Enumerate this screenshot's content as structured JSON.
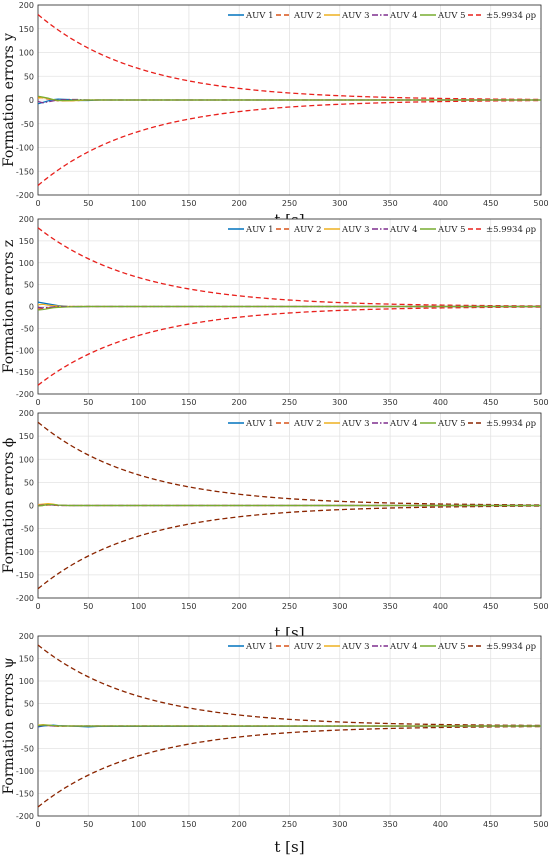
{
  "chart_data": [
    {
      "type": "line",
      "ylabel": "Formation errors y",
      "xlabel": "t [s]",
      "xlim": [
        0,
        500
      ],
      "ylim": [
        -200,
        200
      ],
      "xticks": [
        "0",
        "50",
        "100",
        "150",
        "200",
        "250",
        "300",
        "350",
        "400",
        "450",
        "500"
      ],
      "yticks": [
        "200",
        "150",
        "100",
        "50",
        "0",
        "-50",
        "-100",
        "-150",
        "-200"
      ],
      "grid": true,
      "legend": "top-right, horizontal",
      "series": [
        {
          "name": "AUV 1",
          "color": "#0072BD",
          "style": "solid",
          "x": [
            0,
            5,
            10,
            15,
            20,
            30,
            40,
            50,
            60,
            500
          ],
          "y": [
            -8,
            -5,
            -2,
            1,
            2,
            1,
            -1,
            -1,
            0,
            0
          ]
        },
        {
          "name": "AUV 2",
          "color": "#D95319",
          "style": "dashed",
          "x": [
            0,
            5,
            10,
            15,
            20,
            30,
            40,
            50,
            60,
            500
          ],
          "y": [
            6,
            4,
            2,
            0,
            -2,
            -2,
            -1,
            0,
            0,
            0
          ]
        },
        {
          "name": "AUV 3",
          "color": "#EDB120",
          "style": "solid",
          "x": [
            0,
            5,
            10,
            15,
            20,
            30,
            40,
            50,
            60,
            500
          ],
          "y": [
            4,
            5,
            3,
            1,
            -1,
            -2,
            -1,
            0,
            0,
            0
          ]
        },
        {
          "name": "AUV 4",
          "color": "#7E2F8E",
          "style": "dashdot",
          "x": [
            0,
            5,
            10,
            15,
            20,
            30,
            40,
            50,
            60,
            500
          ],
          "y": [
            -3,
            -6,
            -4,
            -2,
            0,
            1,
            1,
            0,
            0,
            0
          ]
        },
        {
          "name": "AUV 5",
          "color": "#77AC30",
          "style": "solid",
          "x": [
            0,
            5,
            10,
            15,
            20,
            30,
            40,
            50,
            60,
            500
          ],
          "y": [
            8,
            6,
            4,
            1,
            -1,
            -1,
            0,
            0,
            0,
            0
          ]
        }
      ],
      "bound": {
        "name": "±5.9934 ρp",
        "color": "#E8201C",
        "style": "dashed",
        "x0": 180,
        "decay": 0.01
      }
    },
    {
      "type": "line",
      "ylabel": "Formation errors z",
      "xlabel": "t [s]",
      "xlim": [
        0,
        500
      ],
      "ylim": [
        -200,
        200
      ],
      "xticks": [
        "0",
        "50",
        "100",
        "150",
        "200",
        "250",
        "300",
        "350",
        "400",
        "450",
        "500"
      ],
      "yticks": [
        "200",
        "150",
        "100",
        "50",
        "0",
        "-50",
        "-100",
        "-150",
        "-200"
      ],
      "grid": true,
      "legend": "top-right, horizontal",
      "series": [
        {
          "name": "AUV 1",
          "color": "#0072BD",
          "style": "solid",
          "x": [
            0,
            5,
            10,
            15,
            20,
            30,
            40,
            50,
            60,
            500
          ],
          "y": [
            10,
            8,
            6,
            4,
            2,
            0,
            -1,
            0,
            0,
            0
          ]
        },
        {
          "name": "AUV 2",
          "color": "#D95319",
          "style": "dashed",
          "x": [
            0,
            5,
            10,
            15,
            20,
            30,
            40,
            50,
            60,
            500
          ],
          "y": [
            -6,
            -4,
            -3,
            -2,
            -1,
            0,
            0,
            0,
            0,
            0
          ]
        },
        {
          "name": "AUV 3",
          "color": "#EDB120",
          "style": "solid",
          "x": [
            0,
            5,
            10,
            15,
            20,
            30,
            40,
            50,
            60,
            500
          ],
          "y": [
            4,
            5,
            3,
            2,
            1,
            0,
            0,
            0,
            0,
            0
          ]
        },
        {
          "name": "AUV 4",
          "color": "#7E2F8E",
          "style": "dashdot",
          "x": [
            0,
            5,
            10,
            15,
            20,
            30,
            40,
            50,
            60,
            500
          ],
          "y": [
            -2,
            -3,
            -2,
            -1,
            0,
            0,
            0,
            0,
            0,
            0
          ]
        },
        {
          "name": "AUV 5",
          "color": "#77AC30",
          "style": "solid",
          "x": [
            0,
            5,
            10,
            15,
            20,
            30,
            40,
            50,
            60,
            500
          ],
          "y": [
            -8,
            -7,
            -5,
            -3,
            -2,
            -1,
            0,
            0,
            0,
            0
          ]
        }
      ],
      "bound": {
        "name": "±5.9934 ρp",
        "color": "#E8201C",
        "style": "dashed",
        "x0": 180,
        "decay": 0.01
      }
    },
    {
      "type": "line",
      "ylabel": "Formation errors ϕ",
      "xlabel": "t [s]",
      "xlim": [
        0,
        500
      ],
      "ylim": [
        -200,
        200
      ],
      "xticks": [
        "0",
        "50",
        "100",
        "150",
        "200",
        "250",
        "300",
        "350",
        "400",
        "450",
        "500"
      ],
      "yticks": [
        "200",
        "150",
        "100",
        "50",
        "0",
        "-50",
        "-100",
        "-150",
        "-200"
      ],
      "grid": true,
      "legend": "top-right, horizontal",
      "series": [
        {
          "name": "AUV 1",
          "color": "#0072BD",
          "style": "solid",
          "x": [
            0,
            5,
            10,
            15,
            20,
            30,
            40,
            50,
            500
          ],
          "y": [
            1,
            2,
            3,
            2,
            1,
            0,
            0,
            0,
            0
          ]
        },
        {
          "name": "AUV 2",
          "color": "#D95319",
          "style": "dashed",
          "x": [
            0,
            5,
            10,
            15,
            20,
            30,
            40,
            50,
            500
          ],
          "y": [
            -1,
            0,
            1,
            1,
            0,
            0,
            0,
            0,
            0
          ]
        },
        {
          "name": "AUV 3",
          "color": "#EDB120",
          "style": "solid",
          "x": [
            0,
            5,
            10,
            15,
            20,
            30,
            40,
            50,
            500
          ],
          "y": [
            2,
            3,
            4,
            3,
            1,
            0,
            0,
            0,
            0
          ]
        },
        {
          "name": "AUV 4",
          "color": "#7E2F8E",
          "style": "dashdot",
          "x": [
            0,
            5,
            10,
            15,
            20,
            30,
            40,
            50,
            500
          ],
          "y": [
            0,
            1,
            2,
            1,
            0,
            0,
            0,
            0,
            0
          ]
        },
        {
          "name": "AUV 5",
          "color": "#77AC30",
          "style": "solid",
          "x": [
            0,
            5,
            10,
            15,
            20,
            30,
            40,
            50,
            500
          ],
          "y": [
            -1,
            0,
            2,
            2,
            1,
            0,
            0,
            0,
            0
          ]
        }
      ],
      "bound": {
        "name": "±5.9934 ρp",
        "color": "#8B2500",
        "style": "dashed",
        "x0": 180,
        "decay": 0.01
      }
    },
    {
      "type": "line",
      "ylabel": "Formation errors ψ",
      "xlabel": "t [s]",
      "xlim": [
        0,
        500
      ],
      "ylim": [
        -200,
        200
      ],
      "xticks": [
        "0",
        "50",
        "100",
        "150",
        "200",
        "250",
        "300",
        "350",
        "400",
        "450",
        "500"
      ],
      "yticks": [
        "200",
        "150",
        "100",
        "50",
        "0",
        "-50",
        "-100",
        "-150",
        "-200"
      ],
      "grid": true,
      "legend": "top-right, horizontal",
      "series": [
        {
          "name": "AUV 1",
          "color": "#0072BD",
          "style": "solid",
          "x": [
            0,
            5,
            10,
            15,
            20,
            30,
            40,
            50,
            60,
            500
          ],
          "y": [
            -2,
            0,
            1,
            2,
            1,
            0,
            -1,
            -2,
            -1,
            0
          ]
        },
        {
          "name": "AUV 2",
          "color": "#D95319",
          "style": "dashed",
          "x": [
            0,
            5,
            10,
            15,
            20,
            30,
            40,
            50,
            60,
            500
          ],
          "y": [
            1,
            2,
            1,
            0,
            -1,
            0,
            0,
            0,
            0,
            0
          ]
        },
        {
          "name": "AUV 3",
          "color": "#EDB120",
          "style": "solid",
          "x": [
            0,
            5,
            10,
            15,
            20,
            30,
            40,
            50,
            60,
            500
          ],
          "y": [
            2,
            3,
            2,
            1,
            0,
            0,
            0,
            0,
            0,
            0
          ]
        },
        {
          "name": "AUV 4",
          "color": "#7E2F8E",
          "style": "dashdot",
          "x": [
            0,
            5,
            10,
            15,
            20,
            30,
            40,
            50,
            60,
            500
          ],
          "y": [
            0,
            1,
            1,
            0,
            0,
            0,
            0,
            0,
            0,
            0
          ]
        },
        {
          "name": "AUV 5",
          "color": "#77AC30",
          "style": "solid",
          "x": [
            0,
            5,
            10,
            15,
            20,
            30,
            40,
            50,
            60,
            500
          ],
          "y": [
            1,
            2,
            2,
            1,
            0,
            0,
            0,
            0,
            0,
            0
          ]
        }
      ],
      "bound": {
        "name": "±5.9934 ρp",
        "color": "#8B2500",
        "style": "dashed",
        "x0": 180,
        "decay": 0.01
      }
    }
  ]
}
